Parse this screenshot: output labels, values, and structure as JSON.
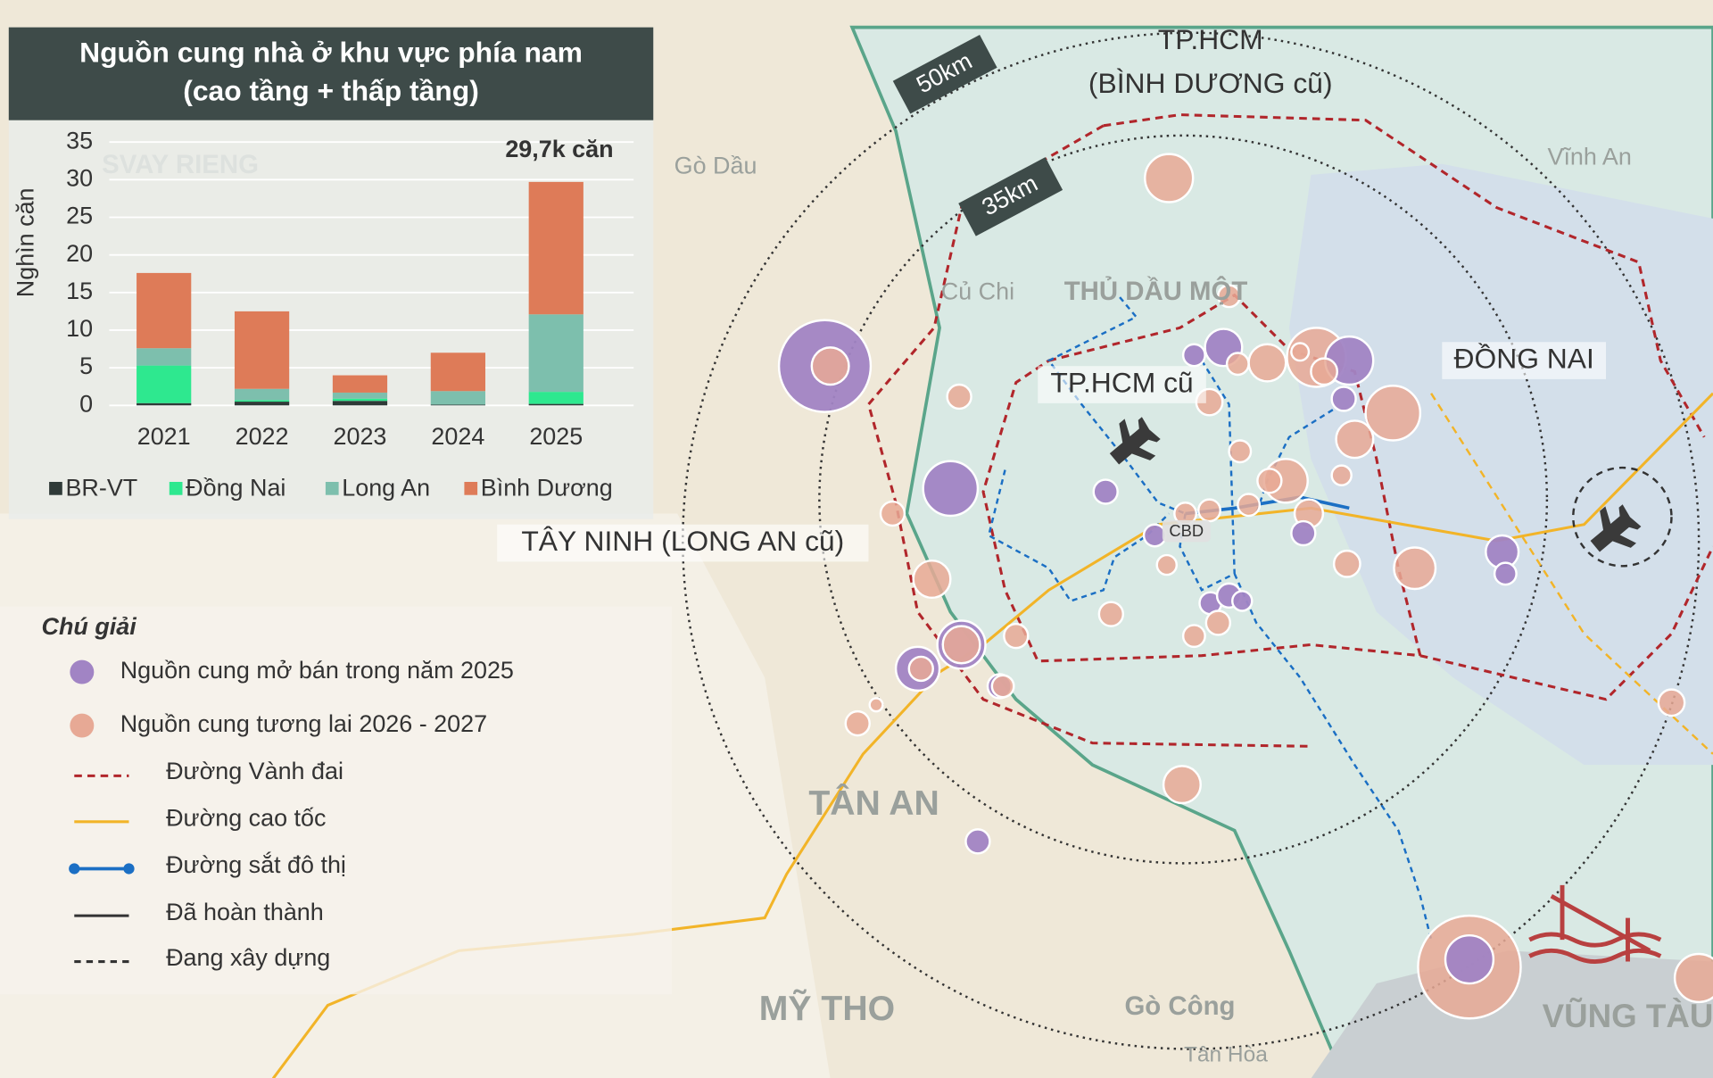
{
  "chart_data": {
    "type": "bar",
    "stacked": true,
    "title": [
      "Nguồn cung nhà ở khu vực phía nam",
      "(cao tầng + thấp tầng)"
    ],
    "y_label": "Nghìn căn",
    "annotation": "29,7k căn",
    "categories": [
      "2021",
      "2022",
      "2023",
      "2024",
      "2025"
    ],
    "series": [
      {
        "name": "BR-VT",
        "color": "#2f3a38",
        "values": [
          0.3,
          0.5,
          0.6,
          0.1,
          0.2
        ]
      },
      {
        "name": "Đồng Nai",
        "color": "#2ee88f",
        "values": [
          5,
          0.2,
          0.3,
          0,
          1.6
        ]
      },
      {
        "name": "Long An",
        "color": "#7dbfad",
        "values": [
          2.3,
          1.5,
          0.8,
          1.8,
          10.3
        ]
      },
      {
        "name": "Bình Dương",
        "color": "#de7b58",
        "values": [
          10,
          10.3,
          2.3,
          5.1,
          17.6
        ]
      }
    ],
    "ylim": [
      0,
      35
    ],
    "yticks": [
      0,
      5,
      10,
      15,
      20,
      25,
      30,
      35
    ],
    "grid": true
  },
  "legend": {
    "title": "Chú giải",
    "items": [
      "Nguồn cung mở bán trong năm 2025",
      "Nguồn cung tương lai 2026 - 2027",
      "Đường Vành đai",
      "Đường cao tốc",
      "Đường sắt đô thị",
      "Đã hoàn thành",
      "Đang xây dựng"
    ]
  },
  "map": {
    "regions": [
      "TP.HCM",
      "(BÌNH DƯƠNG cũ)",
      "TP.HCM cũ",
      "ĐỒNG NAI",
      "TÂY NINH (LONG AN cũ)"
    ],
    "distances": [
      "50km",
      "35km"
    ],
    "cbd": "CBD",
    "places": [
      "Gò Dầu",
      "Vĩnh An",
      "Củ Chi",
      "THỦ DẦU MỘT",
      "TÂN AN",
      "MỸ THO",
      "Gò Công",
      "Tân Hòa",
      "VŨNG TÀU",
      "SVAY RIENG"
    ]
  }
}
